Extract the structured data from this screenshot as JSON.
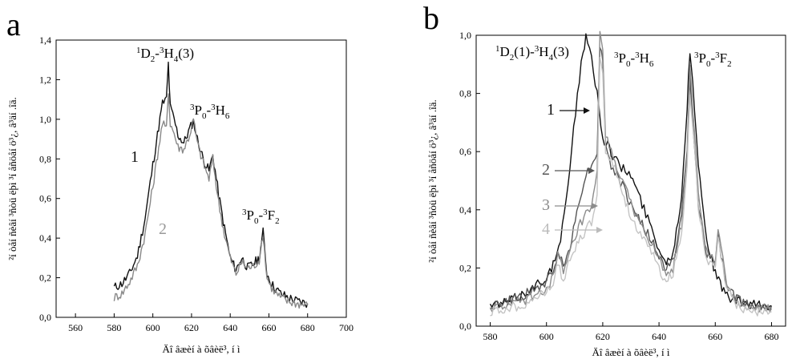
{
  "chart_data": [
    {
      "panel_label": "a",
      "type": "line",
      "xlabel": "Äî âæèí à õâèë³, í ì",
      "ylabel": "²í òåí ñèâí ³ñòü ëþì ³í åñöåí ö³¿, â³äí .îä.",
      "xlim": [
        550,
        700
      ],
      "ylim": [
        0,
        1.4
      ],
      "xticks": [
        "560",
        "580",
        "600",
        "620",
        "640",
        "660",
        "680",
        "700"
      ],
      "yticks": [
        "0,0",
        "0,2",
        "0,4",
        "0,6",
        "0,8",
        "1,0",
        "1,2",
        "1,4"
      ],
      "annotations": [
        {
          "text": "1D2-3H4(3)"
        },
        {
          "text": "3P0-3H6"
        },
        {
          "text": "3P0-3F2"
        }
      ],
      "curve_labels": [
        "1",
        "2"
      ],
      "series": [
        {
          "color": "#111111",
          "x": [
            580,
            584,
            588,
            592,
            596,
            600,
            603,
            605,
            607,
            608,
            609,
            611,
            613,
            616,
            619,
            621,
            623,
            626,
            629,
            631,
            634,
            637,
            640,
            643,
            646,
            649,
            652,
            655,
            657,
            659,
            662,
            666,
            670,
            675,
            680
          ],
          "y": [
            0.15,
            0.17,
            0.22,
            0.31,
            0.5,
            0.77,
            0.96,
            1.08,
            1.1,
            1.28,
            1.06,
            1.0,
            0.92,
            0.88,
            0.95,
            0.99,
            0.9,
            0.8,
            0.74,
            0.82,
            0.62,
            0.45,
            0.3,
            0.24,
            0.3,
            0.25,
            0.27,
            0.3,
            0.43,
            0.22,
            0.16,
            0.12,
            0.1,
            0.08,
            0.07
          ]
        },
        {
          "color": "#888888",
          "x": [
            580,
            584,
            588,
            592,
            596,
            600,
            603,
            605,
            607,
            608,
            609,
            611,
            613,
            616,
            619,
            621,
            623,
            626,
            629,
            631,
            634,
            637,
            640,
            643,
            646,
            649,
            652,
            655,
            657,
            659,
            662,
            666,
            670,
            675,
            680
          ],
          "y": [
            0.1,
            0.12,
            0.18,
            0.26,
            0.42,
            0.66,
            0.86,
            0.98,
            0.95,
            1.15,
            0.98,
            0.93,
            0.86,
            0.85,
            0.92,
            1.0,
            0.88,
            0.78,
            0.7,
            0.8,
            0.58,
            0.42,
            0.3,
            0.22,
            0.28,
            0.25,
            0.26,
            0.29,
            0.42,
            0.2,
            0.14,
            0.1,
            0.08,
            0.07,
            0.06
          ]
        }
      ]
    },
    {
      "panel_label": "b",
      "type": "line",
      "xlabel": "Äî âæèí à õâèë³, í ì",
      "ylabel": "²í òåí ñèâí ³ñòü ëþì ³í åñöåí ö³¿, â³äí .îä.",
      "xlim": [
        575,
        685
      ],
      "ylim": [
        0,
        1.0
      ],
      "xticks": [
        "580",
        "600",
        "620",
        "640",
        "660",
        "680"
      ],
      "yticks": [
        "0,0",
        "0,2",
        "0,4",
        "0,6",
        "0,8",
        "1,0"
      ],
      "annotations": [
        {
          "text": "1D2(1)-3H4(3)"
        },
        {
          "text": "3P0-3H6"
        },
        {
          "text": "3P0-3F2"
        }
      ],
      "curve_labels": [
        "1",
        "2",
        "3",
        "4"
      ],
      "series": [
        {
          "color": "#111111",
          "x": [
            580,
            585,
            590,
            595,
            600,
            603,
            605,
            607,
            609,
            611,
            613,
            614,
            616,
            618,
            620,
            623,
            626,
            630,
            634,
            638,
            642,
            645,
            648,
            650,
            651,
            652,
            654,
            657,
            660,
            663,
            666,
            670,
            675,
            680
          ],
          "y": [
            0.07,
            0.08,
            0.1,
            0.13,
            0.17,
            0.22,
            0.3,
            0.42,
            0.62,
            0.8,
            0.95,
            0.99,
            0.92,
            0.8,
            0.65,
            0.6,
            0.55,
            0.52,
            0.42,
            0.32,
            0.22,
            0.25,
            0.45,
            0.75,
            0.95,
            0.85,
            0.55,
            0.3,
            0.18,
            0.12,
            0.09,
            0.08,
            0.07,
            0.07
          ]
        },
        {
          "color": "#555555",
          "x": [
            580,
            585,
            590,
            595,
            600,
            603,
            604,
            606,
            609,
            612,
            614,
            616,
            618,
            619,
            620,
            621,
            623,
            625,
            627,
            630,
            634,
            638,
            642,
            645,
            648,
            650,
            651,
            652,
            654,
            657,
            660,
            661,
            662,
            664,
            667,
            670,
            675,
            680
          ],
          "y": [
            0.07,
            0.08,
            0.1,
            0.12,
            0.15,
            0.2,
            0.27,
            0.2,
            0.3,
            0.45,
            0.52,
            0.55,
            0.6,
            0.97,
            0.9,
            0.62,
            0.55,
            0.52,
            0.48,
            0.42,
            0.35,
            0.28,
            0.2,
            0.22,
            0.38,
            0.6,
            0.85,
            0.7,
            0.42,
            0.25,
            0.22,
            0.3,
            0.25,
            0.15,
            0.1,
            0.08,
            0.07,
            0.07
          ]
        },
        {
          "color": "#8c8c8c",
          "x": [
            580,
            585,
            590,
            595,
            600,
            603,
            604,
            606,
            609,
            612,
            614,
            616,
            618,
            619,
            620,
            621,
            623,
            625,
            627,
            630,
            634,
            638,
            642,
            645,
            648,
            650,
            651,
            652,
            654,
            657,
            660,
            661,
            662,
            664,
            667,
            670,
            675,
            680
          ],
          "y": [
            0.06,
            0.07,
            0.08,
            0.1,
            0.13,
            0.18,
            0.25,
            0.18,
            0.27,
            0.35,
            0.38,
            0.4,
            0.52,
            1.0,
            0.95,
            0.65,
            0.6,
            0.55,
            0.5,
            0.42,
            0.34,
            0.27,
            0.18,
            0.2,
            0.35,
            0.6,
            0.88,
            0.75,
            0.45,
            0.25,
            0.22,
            0.32,
            0.27,
            0.15,
            0.09,
            0.07,
            0.06,
            0.06
          ]
        },
        {
          "color": "#c4c4c4",
          "x": [
            580,
            585,
            590,
            595,
            600,
            603,
            604,
            606,
            609,
            612,
            614,
            616,
            618,
            619,
            620,
            621,
            623,
            625,
            627,
            630,
            634,
            638,
            642,
            645,
            648,
            650,
            651,
            652,
            654,
            657,
            660,
            661,
            662,
            664,
            667,
            670,
            675,
            680
          ],
          "y": [
            0.05,
            0.06,
            0.07,
            0.09,
            0.12,
            0.16,
            0.22,
            0.16,
            0.24,
            0.3,
            0.33,
            0.36,
            0.45,
            0.92,
            0.88,
            0.6,
            0.58,
            0.52,
            0.46,
            0.38,
            0.3,
            0.24,
            0.16,
            0.18,
            0.32,
            0.55,
            0.8,
            0.7,
            0.4,
            0.22,
            0.2,
            0.3,
            0.24,
            0.13,
            0.08,
            0.06,
            0.05,
            0.05
          ]
        }
      ]
    }
  ]
}
